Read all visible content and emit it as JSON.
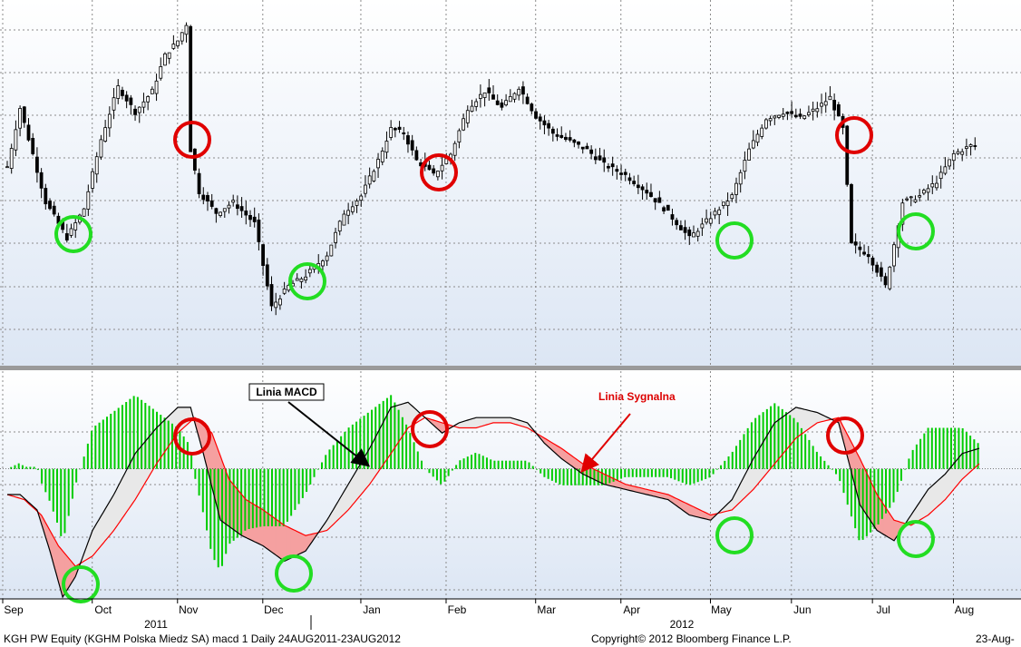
{
  "chart_data": [
    {
      "type": "candlestick",
      "panel": "price",
      "x_ticks": [
        "Sep",
        "Oct",
        "Nov",
        "Dec",
        "Jan",
        "Feb",
        "Mar",
        "Apr",
        "May",
        "Jun",
        "Jul",
        "Aug"
      ],
      "year_labels": [
        "2011",
        "2012"
      ],
      "grid": true,
      "price_series": [
        {
          "t": 0,
          "v": 112
        },
        {
          "t": 0.3,
          "v": 140
        },
        {
          "t": 0.6,
          "v": 118
        },
        {
          "t": 0.9,
          "v": 95
        },
        {
          "t": 1.4,
          "v": 78
        },
        {
          "t": 1.8,
          "v": 92
        },
        {
          "t": 2.2,
          "v": 125
        },
        {
          "t": 2.6,
          "v": 150
        },
        {
          "t": 3.0,
          "v": 138
        },
        {
          "t": 3.4,
          "v": 148
        },
        {
          "t": 3.7,
          "v": 165
        },
        {
          "t": 4.0,
          "v": 172
        },
        {
          "t": 4.2,
          "v": 180
        },
        {
          "t": 4.25,
          "v": 125
        },
        {
          "t": 4.5,
          "v": 100
        },
        {
          "t": 4.9,
          "v": 90
        },
        {
          "t": 5.3,
          "v": 95
        },
        {
          "t": 5.8,
          "v": 85
        },
        {
          "t": 6.2,
          "v": 45
        },
        {
          "t": 6.6,
          "v": 55
        },
        {
          "t": 7.0,
          "v": 60
        },
        {
          "t": 7.5,
          "v": 70
        },
        {
          "t": 7.9,
          "v": 90
        },
        {
          "t": 8.3,
          "v": 98
        },
        {
          "t": 8.7,
          "v": 115
        },
        {
          "t": 9.0,
          "v": 130
        },
        {
          "t": 9.3,
          "v": 128
        },
        {
          "t": 9.6,
          "v": 115
        },
        {
          "t": 10.0,
          "v": 108
        },
        {
          "t": 10.4,
          "v": 118
        },
        {
          "t": 10.8,
          "v": 140
        },
        {
          "t": 11.2,
          "v": 148
        },
        {
          "t": 11.6,
          "v": 140
        },
        {
          "t": 12.0,
          "v": 150
        },
        {
          "t": 12.4,
          "v": 136
        },
        {
          "t": 12.8,
          "v": 128
        },
        {
          "t": 13.2,
          "v": 124
        },
        {
          "t": 13.6,
          "v": 120
        },
        {
          "t": 14.0,
          "v": 113
        },
        {
          "t": 14.5,
          "v": 108
        },
        {
          "t": 15.0,
          "v": 100
        },
        {
          "t": 15.5,
          "v": 90
        },
        {
          "t": 16.0,
          "v": 78
        },
        {
          "t": 16.5,
          "v": 88
        },
        {
          "t": 17.0,
          "v": 98
        },
        {
          "t": 17.4,
          "v": 120
        },
        {
          "t": 17.8,
          "v": 135
        },
        {
          "t": 18.2,
          "v": 138
        },
        {
          "t": 18.6,
          "v": 135
        },
        {
          "t": 19.0,
          "v": 140
        },
        {
          "t": 19.3,
          "v": 145
        },
        {
          "t": 19.6,
          "v": 130
        },
        {
          "t": 19.8,
          "v": 75
        },
        {
          "t": 20.2,
          "v": 70
        },
        {
          "t": 20.6,
          "v": 55
        },
        {
          "t": 21.0,
          "v": 95
        },
        {
          "t": 21.4,
          "v": 98
        },
        {
          "t": 21.8,
          "v": 105
        },
        {
          "t": 22.2,
          "v": 118
        },
        {
          "t": 22.6,
          "v": 122
        }
      ]
    },
    {
      "type": "line",
      "panel": "macd",
      "series": [
        {
          "name": "Linia MACD",
          "color": "#000000",
          "values": [
            [
              0,
              -0.5
            ],
            [
              0.3,
              -0.5
            ],
            [
              0.7,
              -0.8
            ],
            [
              1.0,
              -1.6
            ],
            [
              1.3,
              -2.5
            ],
            [
              1.6,
              -2.1
            ],
            [
              2.0,
              -1.2
            ],
            [
              2.5,
              -0.5
            ],
            [
              3.0,
              0.3
            ],
            [
              3.5,
              0.8
            ],
            [
              4.0,
              1.2
            ],
            [
              4.3,
              1.2
            ],
            [
              4.6,
              0.3
            ],
            [
              5.0,
              -1.0
            ],
            [
              5.5,
              -1.3
            ],
            [
              6.0,
              -1.5
            ],
            [
              6.5,
              -1.8
            ],
            [
              7.0,
              -1.6
            ],
            [
              7.5,
              -1.0
            ],
            [
              8.0,
              -0.3
            ],
            [
              8.5,
              0.4
            ],
            [
              9.0,
              1.2
            ],
            [
              9.4,
              1.3
            ],
            [
              9.8,
              1.0
            ],
            [
              10.2,
              0.7
            ],
            [
              10.6,
              0.9
            ],
            [
              11.0,
              1.0
            ],
            [
              11.4,
              1.0
            ],
            [
              11.8,
              1.0
            ],
            [
              12.2,
              0.9
            ],
            [
              12.6,
              0.5
            ],
            [
              13.0,
              0.2
            ],
            [
              13.5,
              -0.1
            ],
            [
              14.0,
              -0.3
            ],
            [
              14.5,
              -0.4
            ],
            [
              15.0,
              -0.5
            ],
            [
              15.5,
              -0.6
            ],
            [
              16.0,
              -0.9
            ],
            [
              16.5,
              -1.0
            ],
            [
              17.0,
              -0.6
            ],
            [
              17.5,
              0.2
            ],
            [
              18.0,
              0.9
            ],
            [
              18.5,
              1.2
            ],
            [
              19.0,
              1.1
            ],
            [
              19.5,
              0.9
            ],
            [
              20.0,
              -0.7
            ],
            [
              20.4,
              -1.2
            ],
            [
              20.8,
              -1.4
            ],
            [
              21.2,
              -0.9
            ],
            [
              21.6,
              -0.4
            ],
            [
              22.0,
              -0.1
            ],
            [
              22.4,
              0.3
            ],
            [
              22.8,
              0.4
            ]
          ]
        },
        {
          "name": "Linia Sygnalna",
          "color": "#ff0000",
          "values": [
            [
              0,
              -0.5
            ],
            [
              0.4,
              -0.6
            ],
            [
              0.8,
              -0.9
            ],
            [
              1.2,
              -1.5
            ],
            [
              1.6,
              -1.9
            ],
            [
              2.0,
              -1.7
            ],
            [
              2.5,
              -1.2
            ],
            [
              3.0,
              -0.6
            ],
            [
              3.5,
              0.1
            ],
            [
              4.0,
              0.7
            ],
            [
              4.4,
              1.0
            ],
            [
              4.8,
              0.7
            ],
            [
              5.2,
              -0.2
            ],
            [
              5.6,
              -0.6
            ],
            [
              6.0,
              -0.8
            ],
            [
              6.5,
              -1.1
            ],
            [
              7.0,
              -1.3
            ],
            [
              7.5,
              -1.2
            ],
            [
              8.0,
              -0.8
            ],
            [
              8.5,
              -0.3
            ],
            [
              9.0,
              0.3
            ],
            [
              9.4,
              0.8
            ],
            [
              9.8,
              1.0
            ],
            [
              10.2,
              0.9
            ],
            [
              10.6,
              0.8
            ],
            [
              11.0,
              0.8
            ],
            [
              11.4,
              0.9
            ],
            [
              11.8,
              0.9
            ],
            [
              12.2,
              0.8
            ],
            [
              12.6,
              0.6
            ],
            [
              13.0,
              0.4
            ],
            [
              13.5,
              0.1
            ],
            [
              14.0,
              -0.1
            ],
            [
              14.5,
              -0.3
            ],
            [
              15.0,
              -0.4
            ],
            [
              15.5,
              -0.5
            ],
            [
              16.0,
              -0.7
            ],
            [
              16.5,
              -0.9
            ],
            [
              17.0,
              -0.8
            ],
            [
              17.5,
              -0.4
            ],
            [
              18.0,
              0.1
            ],
            [
              18.5,
              0.6
            ],
            [
              19.0,
              0.9
            ],
            [
              19.5,
              1.0
            ],
            [
              20.0,
              0.2
            ],
            [
              20.4,
              -0.5
            ],
            [
              20.8,
              -1.0
            ],
            [
              21.2,
              -1.1
            ],
            [
              21.6,
              -0.9
            ],
            [
              22.0,
              -0.6
            ],
            [
              22.4,
              -0.2
            ],
            [
              22.8,
              0.1
            ]
          ]
        }
      ],
      "histogram_color": "#00cc00",
      "fill_above_color": "#e8e8e8",
      "fill_below_color": "#f5a0a0"
    }
  ],
  "annotations": {
    "macd_label": "Linia MACD",
    "signal_label": "Linia Sygnalna",
    "signal_label_color": "#dd0000",
    "sell_color": "#e00000",
    "buy_color": "#22dd22"
  },
  "footer": {
    "left": "KGH PW Equity  (KGHM Polska Miedz SA)  macd 1   Daily 24AUG2011-23AUG2012",
    "center": "Copyright© 2012 Bloomberg Finance L.P.",
    "right": "23-Aug-"
  }
}
